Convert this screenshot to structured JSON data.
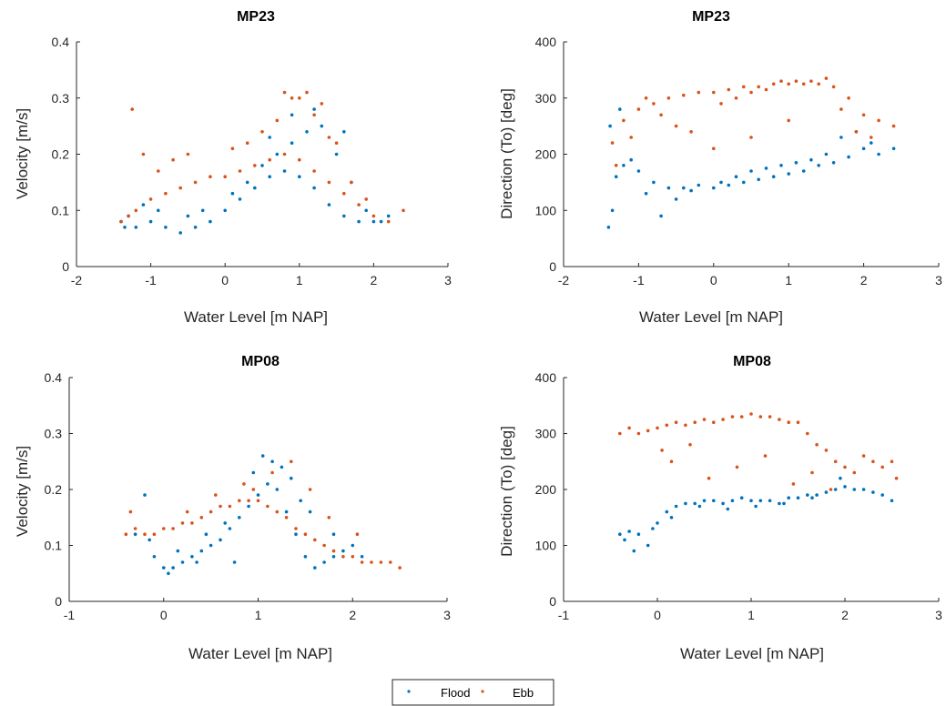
{
  "chart_data": [
    {
      "type": "scatter",
      "title": "MP23",
      "xlabel": "Water Level [m NAP]",
      "ylabel": "Velocity [m/s]",
      "xlim": [
        -2,
        3
      ],
      "ylim": [
        0,
        0.4
      ],
      "xticks": [
        -2,
        -1,
        0,
        1,
        2,
        3
      ],
      "yticks": [
        0,
        0.1,
        0.2,
        0.3,
        0.4
      ],
      "series": [
        {
          "name": "Flood",
          "color": "#0072BD",
          "x": [
            -1.4,
            -1.35,
            -1.2,
            -1.0,
            -0.8,
            -0.6,
            -0.4,
            -0.2,
            0.0,
            0.2,
            0.4,
            0.6,
            0.8,
            1.0,
            1.2,
            1.4,
            1.6,
            1.8,
            2.0,
            2.2,
            -1.3,
            -1.1,
            -0.9,
            -0.5,
            -0.3,
            0.1,
            0.3,
            0.5,
            0.7,
            0.9,
            1.1,
            1.3,
            1.5,
            1.7,
            1.9,
            2.1,
            0.6,
            0.9,
            1.2,
            1.6
          ],
          "y": [
            0.08,
            0.07,
            0.07,
            0.08,
            0.07,
            0.06,
            0.07,
            0.08,
            0.1,
            0.12,
            0.14,
            0.16,
            0.17,
            0.16,
            0.14,
            0.11,
            0.09,
            0.08,
            0.08,
            0.09,
            0.09,
            0.11,
            0.1,
            0.09,
            0.1,
            0.13,
            0.15,
            0.18,
            0.2,
            0.22,
            0.24,
            0.25,
            0.2,
            0.15,
            0.1,
            0.08,
            0.23,
            0.27,
            0.28,
            0.24
          ]
        },
        {
          "name": "Ebb",
          "color": "#D95319",
          "x": [
            -1.4,
            -1.3,
            -1.2,
            -1.0,
            -0.8,
            -0.6,
            -0.4,
            -0.2,
            0.0,
            0.2,
            0.4,
            0.6,
            0.8,
            1.0,
            1.2,
            1.4,
            1.6,
            1.8,
            2.0,
            2.2,
            -1.25,
            -1.1,
            -0.9,
            -0.7,
            -0.5,
            0.1,
            0.3,
            0.5,
            0.7,
            0.9,
            1.1,
            1.3,
            1.5,
            1.7,
            1.9,
            2.4,
            0.8,
            1.0,
            1.2,
            1.4
          ],
          "y": [
            0.08,
            0.09,
            0.1,
            0.12,
            0.13,
            0.14,
            0.15,
            0.16,
            0.16,
            0.17,
            0.18,
            0.19,
            0.2,
            0.19,
            0.17,
            0.15,
            0.13,
            0.11,
            0.09,
            0.08,
            0.28,
            0.2,
            0.17,
            0.19,
            0.2,
            0.21,
            0.22,
            0.24,
            0.26,
            0.3,
            0.31,
            0.29,
            0.22,
            0.15,
            0.12,
            0.1,
            0.31,
            0.3,
            0.27,
            0.23
          ]
        }
      ]
    },
    {
      "type": "scatter",
      "title": "MP23",
      "xlabel": "Water Level [m NAP]",
      "ylabel": "Direction (To) [deg]",
      "xlim": [
        -2,
        3
      ],
      "ylim": [
        0,
        400
      ],
      "xticks": [
        -2,
        -1,
        0,
        1,
        2,
        3
      ],
      "yticks": [
        0,
        100,
        200,
        300,
        400
      ],
      "series": [
        {
          "name": "Flood",
          "color": "#0072BD",
          "x": [
            -1.4,
            -1.35,
            -1.3,
            -1.2,
            -1.0,
            -0.8,
            -0.6,
            -0.4,
            -0.2,
            0.0,
            0.2,
            0.4,
            0.6,
            0.8,
            1.0,
            1.2,
            1.4,
            1.6,
            1.8,
            2.0,
            -1.38,
            -1.1,
            -0.9,
            -0.5,
            -0.3,
            0.1,
            0.3,
            0.5,
            0.7,
            0.9,
            1.1,
            1.3,
            1.5,
            1.7,
            1.9,
            2.1,
            2.2,
            2.4,
            -1.25,
            -0.7
          ],
          "y": [
            70,
            100,
            160,
            180,
            170,
            150,
            140,
            140,
            145,
            140,
            145,
            150,
            155,
            160,
            165,
            170,
            180,
            185,
            195,
            210,
            250,
            190,
            130,
            120,
            135,
            150,
            160,
            170,
            175,
            180,
            185,
            190,
            200,
            230,
            240,
            220,
            200,
            210,
            280,
            90
          ]
        },
        {
          "name": "Ebb",
          "color": "#D95319",
          "x": [
            -1.35,
            -1.2,
            -1.0,
            -0.8,
            -0.6,
            -0.4,
            -0.2,
            0.0,
            0.2,
            0.4,
            0.6,
            0.8,
            1.0,
            1.2,
            1.4,
            1.6,
            1.8,
            2.0,
            2.2,
            2.4,
            -1.3,
            -1.1,
            -0.9,
            -0.7,
            -0.5,
            -0.3,
            0.1,
            0.3,
            0.5,
            0.7,
            0.9,
            1.1,
            1.3,
            1.5,
            1.7,
            1.9,
            2.1,
            0.0,
            0.5,
            1.0
          ],
          "y": [
            220,
            260,
            280,
            290,
            300,
            305,
            310,
            310,
            315,
            320,
            320,
            325,
            325,
            325,
            325,
            320,
            300,
            270,
            260,
            250,
            180,
            230,
            300,
            270,
            250,
            240,
            290,
            300,
            310,
            315,
            330,
            330,
            330,
            335,
            280,
            240,
            230,
            210,
            230,
            260
          ]
        }
      ]
    },
    {
      "type": "scatter",
      "title": "MP08",
      "xlabel": "Water Level [m NAP]",
      "ylabel": "Velocity [m/s]",
      "xlim": [
        -1,
        3
      ],
      "ylim": [
        0,
        0.4
      ],
      "xticks": [
        -1,
        0,
        1,
        2,
        3
      ],
      "yticks": [
        0,
        0.1,
        0.2,
        0.3,
        0.4
      ],
      "series": [
        {
          "name": "Flood",
          "color": "#0072BD",
          "x": [
            -0.3,
            -0.2,
            -0.1,
            0.0,
            0.1,
            0.2,
            0.3,
            0.4,
            0.5,
            0.6,
            0.7,
            0.8,
            0.9,
            1.0,
            1.1,
            1.2,
            1.3,
            1.4,
            1.5,
            1.6,
            1.7,
            1.8,
            1.9,
            2.0,
            2.1,
            0.15,
            0.45,
            0.75,
            1.05,
            1.25,
            1.45,
            0.05,
            0.35,
            0.65,
            0.95,
            1.15,
            1.35,
            1.55,
            -0.15,
            1.8
          ],
          "y": [
            0.12,
            0.19,
            0.08,
            0.06,
            0.06,
            0.07,
            0.08,
            0.09,
            0.1,
            0.11,
            0.13,
            0.15,
            0.17,
            0.19,
            0.21,
            0.2,
            0.16,
            0.12,
            0.08,
            0.06,
            0.07,
            0.08,
            0.09,
            0.1,
            0.08,
            0.09,
            0.12,
            0.07,
            0.26,
            0.24,
            0.18,
            0.05,
            0.07,
            0.14,
            0.23,
            0.25,
            0.22,
            0.16,
            0.11,
            0.12
          ]
        },
        {
          "name": "Ebb",
          "color": "#D95319",
          "x": [
            -0.4,
            -0.3,
            -0.2,
            -0.1,
            0.0,
            0.1,
            0.2,
            0.3,
            0.4,
            0.5,
            0.6,
            0.7,
            0.8,
            0.9,
            1.0,
            1.1,
            1.2,
            1.3,
            1.4,
            1.5,
            1.6,
            1.7,
            1.8,
            1.9,
            2.0,
            2.1,
            2.2,
            2.3,
            2.4,
            2.5,
            0.25,
            0.55,
            0.85,
            1.15,
            1.35,
            1.55,
            1.75,
            2.05,
            -0.35,
            0.95
          ],
          "y": [
            0.12,
            0.13,
            0.12,
            0.12,
            0.13,
            0.13,
            0.14,
            0.14,
            0.15,
            0.16,
            0.17,
            0.17,
            0.18,
            0.18,
            0.18,
            0.17,
            0.16,
            0.15,
            0.13,
            0.12,
            0.11,
            0.1,
            0.09,
            0.08,
            0.08,
            0.07,
            0.07,
            0.07,
            0.07,
            0.06,
            0.16,
            0.19,
            0.21,
            0.23,
            0.25,
            0.2,
            0.15,
            0.12,
            0.16,
            0.2
          ]
        }
      ]
    },
    {
      "type": "scatter",
      "title": "MP08",
      "xlabel": "Water Level [m NAP]",
      "ylabel": "Direction (To) [deg]",
      "xlim": [
        -1,
        3
      ],
      "ylim": [
        0,
        400
      ],
      "xticks": [
        -1,
        0,
        1,
        2,
        3
      ],
      "yticks": [
        0,
        100,
        200,
        300,
        400
      ],
      "series": [
        {
          "name": "Flood",
          "color": "#0072BD",
          "x": [
            -0.4,
            -0.3,
            -0.2,
            -0.1,
            0.0,
            0.1,
            0.2,
            0.3,
            0.4,
            0.5,
            0.6,
            0.7,
            0.8,
            0.9,
            1.0,
            1.1,
            1.2,
            1.3,
            1.4,
            1.5,
            1.6,
            1.7,
            1.8,
            1.9,
            2.0,
            2.1,
            2.2,
            2.3,
            2.4,
            2.5,
            -0.35,
            -0.25,
            -0.05,
            0.15,
            0.45,
            0.75,
            1.05,
            1.35,
            1.65,
            1.95
          ],
          "y": [
            120,
            125,
            120,
            100,
            140,
            160,
            170,
            175,
            175,
            180,
            180,
            175,
            180,
            185,
            180,
            180,
            180,
            175,
            185,
            185,
            190,
            190,
            195,
            200,
            205,
            200,
            200,
            195,
            190,
            180,
            110,
            90,
            130,
            150,
            170,
            165,
            170,
            175,
            185,
            220
          ]
        },
        {
          "name": "Ebb",
          "color": "#D95319",
          "x": [
            -0.4,
            -0.3,
            -0.2,
            -0.1,
            0.0,
            0.1,
            0.2,
            0.3,
            0.4,
            0.5,
            0.6,
            0.7,
            0.8,
            0.9,
            1.0,
            1.1,
            1.2,
            1.3,
            1.4,
            1.5,
            1.6,
            1.7,
            1.8,
            1.9,
            2.0,
            2.1,
            2.2,
            2.3,
            2.4,
            2.5,
            0.15,
            0.35,
            0.55,
            0.85,
            1.15,
            1.45,
            1.65,
            1.85,
            0.05,
            2.55
          ],
          "y": [
            300,
            310,
            300,
            305,
            310,
            315,
            320,
            315,
            320,
            325,
            320,
            325,
            330,
            330,
            335,
            330,
            330,
            325,
            320,
            320,
            300,
            280,
            270,
            250,
            240,
            230,
            260,
            250,
            240,
            250,
            250,
            280,
            220,
            240,
            260,
            210,
            230,
            200,
            270,
            220
          ]
        }
      ]
    }
  ],
  "legend": {
    "entries": [
      {
        "label": "Flood",
        "color": "#0072BD"
      },
      {
        "label": "Ebb",
        "color": "#D95319"
      }
    ]
  }
}
